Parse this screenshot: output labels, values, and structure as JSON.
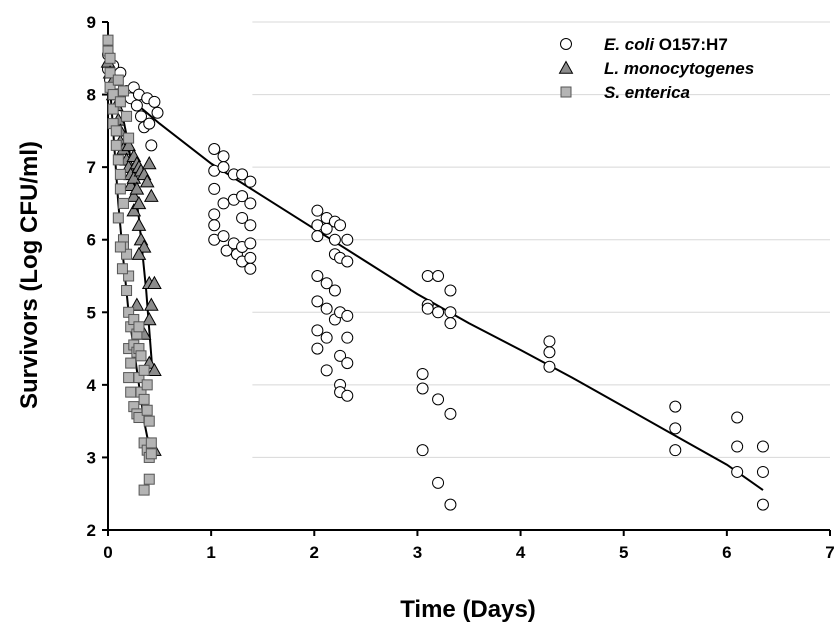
{
  "chart_data": {
    "type": "scatter",
    "xlabel": "Time (Days)",
    "ylabel": "Survivors (Log CFU/ml)",
    "xlim": [
      0,
      7
    ],
    "ylim": [
      2,
      9
    ],
    "x_ticks": [
      "0",
      "1",
      "2",
      "3",
      "4",
      "5",
      "6",
      "7"
    ],
    "y_ticks": [
      "2",
      "3",
      "4",
      "5",
      "6",
      "7",
      "8",
      "9"
    ],
    "grid": "horizontal",
    "legend_position": "top-right",
    "legend": [
      {
        "italic": "E. coli",
        "normal": " O157:H7",
        "marker": "circle",
        "color": "#ffffff"
      },
      {
        "italic": "L. monocytogenes",
        "normal": "",
        "marker": "triangle",
        "color": "#8c8c8c"
      },
      {
        "italic": "S. enterica",
        "normal": "",
        "marker": "square",
        "color": "#b4b4b4"
      }
    ],
    "series": [
      {
        "name": "E. coli O157:H7",
        "marker": "circle",
        "fill": "#ffffff",
        "points": [
          [
            0,
            8.55
          ],
          [
            0,
            8.35
          ],
          [
            0.02,
            8.2
          ],
          [
            0.05,
            8.4
          ],
          [
            0.08,
            8.15
          ],
          [
            0.1,
            8.0
          ],
          [
            0.12,
            8.3
          ],
          [
            0.18,
            8.05
          ],
          [
            0.22,
            7.95
          ],
          [
            0.25,
            8.1
          ],
          [
            0.28,
            7.85
          ],
          [
            0.3,
            8.0
          ],
          [
            0.32,
            7.7
          ],
          [
            0.35,
            7.55
          ],
          [
            0.38,
            7.95
          ],
          [
            0.4,
            7.6
          ],
          [
            0.42,
            7.3
          ],
          [
            0.45,
            7.9
          ],
          [
            0.48,
            7.75
          ],
          [
            1.03,
            7.25
          ],
          [
            1.03,
            6.95
          ],
          [
            1.03,
            6.7
          ],
          [
            1.03,
            6.35
          ],
          [
            1.03,
            6.2
          ],
          [
            1.03,
            6.0
          ],
          [
            1.12,
            7.15
          ],
          [
            1.12,
            7.0
          ],
          [
            1.12,
            6.5
          ],
          [
            1.12,
            6.05
          ],
          [
            1.15,
            5.85
          ],
          [
            1.22,
            6.9
          ],
          [
            1.22,
            6.55
          ],
          [
            1.22,
            5.95
          ],
          [
            1.25,
            5.8
          ],
          [
            1.3,
            6.9
          ],
          [
            1.3,
            6.6
          ],
          [
            1.3,
            6.3
          ],
          [
            1.3,
            5.9
          ],
          [
            1.3,
            5.7
          ],
          [
            1.38,
            6.8
          ],
          [
            1.38,
            6.5
          ],
          [
            1.38,
            6.2
          ],
          [
            1.38,
            5.95
          ],
          [
            1.38,
            5.75
          ],
          [
            1.38,
            5.6
          ],
          [
            2.03,
            6.4
          ],
          [
            2.03,
            6.2
          ],
          [
            2.03,
            6.05
          ],
          [
            2.03,
            5.5
          ],
          [
            2.03,
            5.15
          ],
          [
            2.03,
            4.75
          ],
          [
            2.03,
            4.5
          ],
          [
            2.12,
            6.3
          ],
          [
            2.12,
            6.15
          ],
          [
            2.12,
            5.4
          ],
          [
            2.12,
            5.05
          ],
          [
            2.12,
            4.65
          ],
          [
            2.12,
            4.2
          ],
          [
            2.2,
            6.25
          ],
          [
            2.2,
            6.0
          ],
          [
            2.2,
            5.8
          ],
          [
            2.2,
            5.3
          ],
          [
            2.2,
            4.9
          ],
          [
            2.25,
            6.2
          ],
          [
            2.25,
            5.75
          ],
          [
            2.25,
            5.0
          ],
          [
            2.25,
            4.4
          ],
          [
            2.25,
            4.0
          ],
          [
            2.25,
            3.9
          ],
          [
            2.32,
            6.0
          ],
          [
            2.32,
            5.7
          ],
          [
            2.32,
            4.95
          ],
          [
            2.32,
            4.65
          ],
          [
            2.32,
            4.3
          ],
          [
            2.32,
            3.85
          ],
          [
            3.05,
            4.15
          ],
          [
            3.05,
            3.95
          ],
          [
            3.05,
            3.1
          ],
          [
            3.1,
            5.5
          ],
          [
            3.1,
            5.1
          ],
          [
            3.1,
            5.05
          ],
          [
            3.2,
            5.5
          ],
          [
            3.2,
            5.0
          ],
          [
            3.2,
            3.8
          ],
          [
            3.2,
            2.65
          ],
          [
            3.32,
            5.3
          ],
          [
            3.32,
            5.0
          ],
          [
            3.32,
            4.85
          ],
          [
            3.32,
            3.6
          ],
          [
            3.32,
            2.35
          ],
          [
            4.28,
            4.6
          ],
          [
            4.28,
            4.45
          ],
          [
            4.28,
            4.25
          ],
          [
            5.5,
            3.7
          ],
          [
            5.5,
            3.4
          ],
          [
            5.5,
            3.1
          ],
          [
            6.1,
            3.55
          ],
          [
            6.1,
            3.15
          ],
          [
            6.1,
            2.8
          ],
          [
            6.35,
            3.15
          ],
          [
            6.35,
            2.8
          ],
          [
            6.35,
            2.35
          ]
        ]
      },
      {
        "name": "L. monocytogenes",
        "marker": "triangle",
        "fill": "#8c8c8c",
        "points": [
          [
            0,
            8.45
          ],
          [
            0.02,
            8.3
          ],
          [
            0.05,
            8.2
          ],
          [
            0.05,
            8.0
          ],
          [
            0.08,
            7.85
          ],
          [
            0.1,
            7.65
          ],
          [
            0.12,
            7.5
          ],
          [
            0.12,
            7.35
          ],
          [
            0.15,
            7.25
          ],
          [
            0.18,
            7.1
          ],
          [
            0.2,
            7.3
          ],
          [
            0.2,
            7.0
          ],
          [
            0.22,
            6.9
          ],
          [
            0.22,
            6.75
          ],
          [
            0.25,
            7.15
          ],
          [
            0.25,
            6.85
          ],
          [
            0.25,
            6.6
          ],
          [
            0.25,
            6.4
          ],
          [
            0.28,
            7.05
          ],
          [
            0.28,
            6.7
          ],
          [
            0.3,
            7.0
          ],
          [
            0.3,
            6.5
          ],
          [
            0.3,
            6.2
          ],
          [
            0.32,
            6.95
          ],
          [
            0.32,
            6.0
          ],
          [
            0.35,
            6.9
          ],
          [
            0.35,
            5.9
          ],
          [
            0.38,
            6.8
          ],
          [
            0.4,
            7.05
          ],
          [
            0.4,
            5.4
          ],
          [
            0.4,
            4.9
          ],
          [
            0.4,
            4.3
          ],
          [
            0.42,
            6.6
          ],
          [
            0.42,
            5.1
          ],
          [
            0.45,
            5.4
          ],
          [
            0.45,
            4.2
          ],
          [
            0.45,
            3.1
          ],
          [
            0.3,
            5.8
          ],
          [
            0.28,
            5.1
          ],
          [
            0.35,
            4.7
          ]
        ]
      },
      {
        "name": "S. enterica",
        "marker": "square",
        "fill": "#b4b4b4",
        "points": [
          [
            0,
            8.75
          ],
          [
            0,
            8.6
          ],
          [
            0.02,
            8.5
          ],
          [
            0.02,
            8.3
          ],
          [
            0.02,
            8.1
          ],
          [
            0.05,
            8.0
          ],
          [
            0.05,
            7.8
          ],
          [
            0.05,
            7.6
          ],
          [
            0.08,
            7.5
          ],
          [
            0.08,
            7.3
          ],
          [
            0.1,
            8.2
          ],
          [
            0.1,
            7.1
          ],
          [
            0.12,
            6.9
          ],
          [
            0.12,
            6.7
          ],
          [
            0.12,
            7.9
          ],
          [
            0.15,
            8.05
          ],
          [
            0.15,
            6.5
          ],
          [
            0.15,
            6.0
          ],
          [
            0.15,
            5.9
          ],
          [
            0.18,
            7.7
          ],
          [
            0.18,
            5.8
          ],
          [
            0.18,
            5.3
          ],
          [
            0.2,
            7.4
          ],
          [
            0.2,
            5.5
          ],
          [
            0.2,
            5.0
          ],
          [
            0.2,
            4.5
          ],
          [
            0.2,
            4.1
          ],
          [
            0.22,
            4.8
          ],
          [
            0.22,
            4.3
          ],
          [
            0.22,
            3.9
          ],
          [
            0.25,
            4.9
          ],
          [
            0.25,
            4.55
          ],
          [
            0.25,
            3.7
          ],
          [
            0.28,
            4.7
          ],
          [
            0.28,
            4.45
          ],
          [
            0.28,
            3.6
          ],
          [
            0.3,
            4.8
          ],
          [
            0.3,
            4.5
          ],
          [
            0.3,
            4.1
          ],
          [
            0.3,
            3.55
          ],
          [
            0.32,
            4.4
          ],
          [
            0.32,
            3.9
          ],
          [
            0.35,
            4.2
          ],
          [
            0.35,
            3.8
          ],
          [
            0.35,
            3.2
          ],
          [
            0.35,
            2.55
          ],
          [
            0.38,
            4.0
          ],
          [
            0.38,
            3.65
          ],
          [
            0.38,
            3.1
          ],
          [
            0.4,
            3.5
          ],
          [
            0.4,
            3.0
          ],
          [
            0.4,
            2.7
          ],
          [
            0.42,
            3.2
          ],
          [
            0.42,
            3.05
          ],
          [
            0.12,
            5.9
          ],
          [
            0.1,
            6.3
          ],
          [
            0.14,
            5.6
          ]
        ]
      }
    ],
    "fit_curves": [
      {
        "name": "E. coli O157:H7",
        "points": [
          [
            0,
            8.5
          ],
          [
            0.1,
            8.2
          ],
          [
            0.25,
            7.9
          ],
          [
            0.5,
            7.6
          ],
          [
            1,
            7.05
          ],
          [
            1.5,
            6.6
          ],
          [
            2,
            6.15
          ],
          [
            2.5,
            5.7
          ],
          [
            3,
            5.25
          ],
          [
            3.5,
            4.85
          ],
          [
            4,
            4.48
          ],
          [
            4.5,
            4.1
          ],
          [
            5,
            3.7
          ],
          [
            5.5,
            3.3
          ],
          [
            6,
            2.9
          ],
          [
            6.35,
            2.55
          ]
        ]
      },
      {
        "name": "L. monocytogenes",
        "points": [
          [
            0,
            8.5
          ],
          [
            0.1,
            8.0
          ],
          [
            0.2,
            7.3
          ],
          [
            0.3,
            6.3
          ],
          [
            0.37,
            5.3
          ],
          [
            0.43,
            4.2
          ]
        ]
      },
      {
        "name": "S. enterica",
        "points": [
          [
            0,
            8.5
          ],
          [
            0.05,
            7.5
          ],
          [
            0.1,
            6.5
          ],
          [
            0.15,
            5.7
          ],
          [
            0.2,
            5.0
          ],
          [
            0.28,
            4.2
          ],
          [
            0.35,
            3.5
          ],
          [
            0.42,
            3.0
          ]
        ]
      }
    ]
  }
}
